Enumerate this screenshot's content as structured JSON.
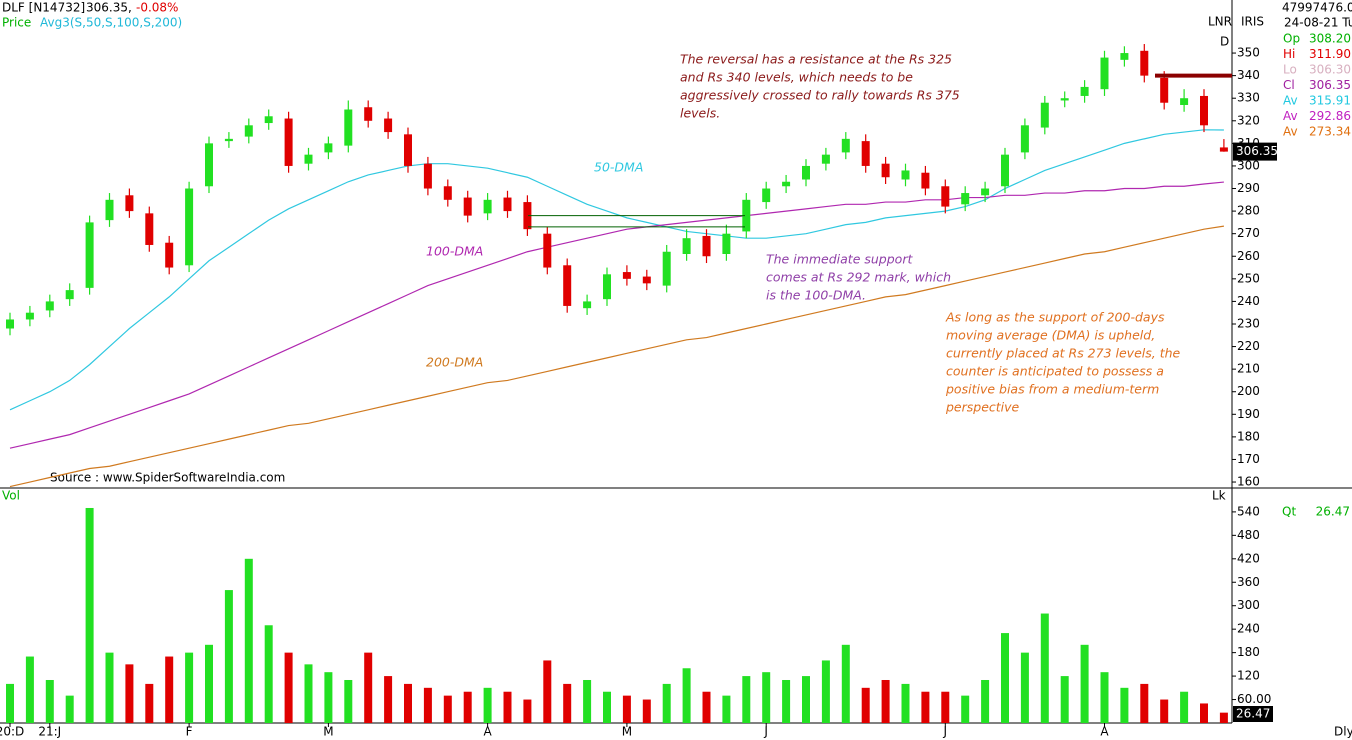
{
  "header": {
    "symbol": "DLF [N14732]",
    "last": "306.35,",
    "change": "-0.08%",
    "price_label": "Price",
    "avg_label": "Avg3(S,50,S,100,S,200)",
    "top_right": "47997476.00",
    "date": "24-08-21 Tu",
    "lnr": "LNR",
    "iris": "IRIS",
    "d": "D"
  },
  "info": [
    {
      "label": "Op",
      "value": "308.20",
      "color": "#00b000"
    },
    {
      "label": "Hi",
      "value": "311.90",
      "color": "#e00000"
    },
    {
      "label": "Lo",
      "value": "306.30",
      "color": "#d8b0c0"
    },
    {
      "label": "Cl",
      "value": "306.35",
      "color": "#a020a0"
    },
    {
      "label": "Av",
      "value": "315.91",
      "color": "#20c8e0"
    },
    {
      "label": "Av",
      "value": "292.86",
      "color": "#c020c0"
    },
    {
      "label": "Av",
      "value": "273.34",
      "color": "#e07010"
    }
  ],
  "volume_panel": {
    "title": "Vol",
    "unit": "Lk",
    "qt_label": "Qt",
    "qt_value": "26.47"
  },
  "footer": {
    "period": "Dly"
  },
  "chart_data": {
    "type": "candlestick",
    "source": "Source : www.SpiderSoftwareIndia.com",
    "categories": [
      "20:D",
      null,
      "21:J",
      null,
      null,
      null,
      null,
      null,
      null,
      "F",
      null,
      null,
      null,
      null,
      null,
      null,
      "M",
      null,
      null,
      null,
      null,
      null,
      null,
      null,
      "A",
      null,
      null,
      null,
      null,
      null,
      null,
      "M",
      null,
      null,
      null,
      null,
      null,
      null,
      "J",
      null,
      null,
      null,
      null,
      null,
      null,
      null,
      null,
      "J",
      null,
      null,
      null,
      null,
      null,
      null,
      null,
      "A",
      null,
      null,
      null,
      null,
      null,
      null
    ],
    "open": [
      228,
      232,
      236,
      241,
      246,
      276,
      287,
      279,
      266,
      256,
      291,
      311,
      313,
      319,
      321,
      301,
      306,
      309,
      326,
      321,
      314,
      301,
      291,
      286,
      279,
      286,
      284,
      270,
      256,
      237,
      241,
      253,
      251,
      247,
      261,
      269,
      261,
      271,
      284,
      291,
      294,
      301,
      306,
      311,
      301,
      294,
      297,
      291,
      283,
      287,
      291,
      306,
      317,
      329,
      331,
      334,
      347,
      351,
      339,
      327,
      331,
      308.2
    ],
    "high": [
      235,
      238,
      243,
      248,
      278,
      288,
      290,
      282,
      269,
      293,
      313,
      315,
      321,
      325,
      324,
      308,
      313,
      329,
      329,
      324,
      317,
      304,
      294,
      289,
      288,
      289,
      287,
      273,
      259,
      243,
      255,
      256,
      254,
      265,
      272,
      272,
      274,
      288,
      293,
      296,
      303,
      308,
      315,
      314,
      304,
      301,
      300,
      294,
      291,
      293,
      308,
      321,
      331,
      333,
      338,
      351,
      353,
      354,
      342,
      334,
      334,
      311.9
    ],
    "low": [
      225,
      229,
      233,
      238,
      243,
      273,
      277,
      262,
      252,
      253,
      288,
      308,
      310,
      316,
      297,
      298,
      303,
      306,
      317,
      312,
      297,
      287,
      282,
      275,
      276,
      277,
      269,
      252,
      235,
      234,
      238,
      247,
      245,
      244,
      258,
      257,
      258,
      268,
      281,
      288,
      291,
      298,
      303,
      297,
      292,
      291,
      287,
      279,
      280,
      284,
      288,
      303,
      314,
      326,
      328,
      331,
      344,
      337,
      325,
      324,
      315,
      306.3
    ],
    "close": [
      232,
      235,
      240,
      245,
      275,
      285,
      280,
      265,
      255,
      290,
      310,
      312,
      318,
      322,
      300,
      305,
      310,
      325,
      320,
      315,
      300,
      290,
      285,
      278,
      285,
      280,
      272,
      255,
      238,
      240,
      252,
      250,
      248,
      262,
      268,
      260,
      270,
      285,
      290,
      293,
      300,
      305,
      312,
      300,
      295,
      298,
      290,
      282,
      288,
      290,
      305,
      318,
      328,
      330,
      335,
      348,
      350,
      340,
      328,
      330,
      318,
      306.35
    ],
    "volume": [
      100,
      170,
      110,
      70,
      550,
      180,
      150,
      100,
      170,
      180,
      200,
      340,
      420,
      250,
      180,
      150,
      130,
      110,
      180,
      120,
      100,
      90,
      70,
      80,
      90,
      80,
      60,
      160,
      100,
      110,
      80,
      70,
      60,
      100,
      140,
      80,
      70,
      120,
      130,
      110,
      120,
      160,
      200,
      90,
      110,
      100,
      80,
      80,
      70,
      110,
      230,
      180,
      280,
      120,
      200,
      130,
      90,
      100,
      60,
      80,
      50,
      26.47
    ],
    "up_color": "#22e022",
    "down_color": "#e00000",
    "series": [
      {
        "name": "50-DMA",
        "color": "#30c8e0",
        "values": [
          192,
          196,
          200,
          205,
          212,
          220,
          228,
          235,
          242,
          250,
          258,
          264,
          270,
          276,
          281,
          285,
          289,
          293,
          296,
          298,
          300,
          301,
          301,
          300,
          299,
          297,
          295,
          291,
          287,
          283,
          280,
          277,
          275,
          273,
          271,
          270,
          269,
          268,
          268,
          269,
          270,
          272,
          274,
          275,
          277,
          278,
          279,
          280,
          282,
          285,
          290,
          294,
          298,
          301,
          304,
          307,
          310,
          312,
          314,
          315,
          316,
          315.91
        ]
      },
      {
        "name": "100-DMA",
        "color": "#b028b0",
        "values": [
          175,
          177,
          179,
          181,
          184,
          187,
          190,
          193,
          196,
          199,
          203,
          207,
          211,
          215,
          219,
          223,
          227,
          231,
          235,
          239,
          243,
          247,
          250,
          253,
          256,
          259,
          262,
          264,
          266,
          268,
          270,
          272,
          273,
          274,
          275,
          276,
          277,
          278,
          279,
          280,
          281,
          282,
          283,
          283,
          284,
          284,
          285,
          285,
          286,
          286,
          287,
          287,
          288,
          288,
          289,
          289,
          290,
          290,
          291,
          291,
          292,
          292.86
        ]
      },
      {
        "name": "200-DMA",
        "color": "#d07a20",
        "values": [
          158,
          160,
          162,
          164,
          166,
          167,
          169,
          171,
          173,
          175,
          177,
          179,
          181,
          183,
          185,
          186,
          188,
          190,
          192,
          194,
          196,
          198,
          200,
          202,
          204,
          205,
          207,
          209,
          211,
          213,
          215,
          217,
          219,
          221,
          223,
          224,
          226,
          228,
          230,
          232,
          234,
          236,
          238,
          240,
          242,
          243,
          245,
          247,
          249,
          251,
          253,
          255,
          257,
          259,
          261,
          262,
          264,
          266,
          268,
          270,
          272,
          273.34
        ]
      }
    ],
    "resistance": 340,
    "supports": [
      278,
      273
    ],
    "annotations": [
      {
        "color": "#8b1a1a",
        "lines": [
          "The reversal has a resistance at the Rs 325",
          "and Rs 340 levels, which needs to be",
          "aggressively crossed to rally towards Rs 375",
          "levels."
        ]
      },
      {
        "color": "#9040a8",
        "lines": [
          "The immediate support",
          "comes at Rs 292 mark, which",
          "is the 100-DMA."
        ]
      },
      {
        "color": "#e07020",
        "lines": [
          "As long as the support of 200-days",
          "moving average (DMA) is upheld,",
          "currently placed at Rs 273 levels, the",
          "counter is anticipated to possess a",
          "positive bias from a medium-term",
          "perspective"
        ]
      }
    ],
    "ylim": [
      157.8,
      373.5
    ],
    "yticks": [
      160,
      170,
      180,
      190,
      200,
      210,
      220,
      230,
      240,
      250,
      260,
      270,
      280,
      290,
      300,
      310,
      320,
      330,
      340,
      350
    ],
    "vol_lim": [
      0,
      596
    ],
    "vol_ticks": [
      {
        "value": 60,
        "label": "60.00"
      },
      120,
      180,
      240,
      300,
      360,
      420,
      480,
      540
    ]
  }
}
